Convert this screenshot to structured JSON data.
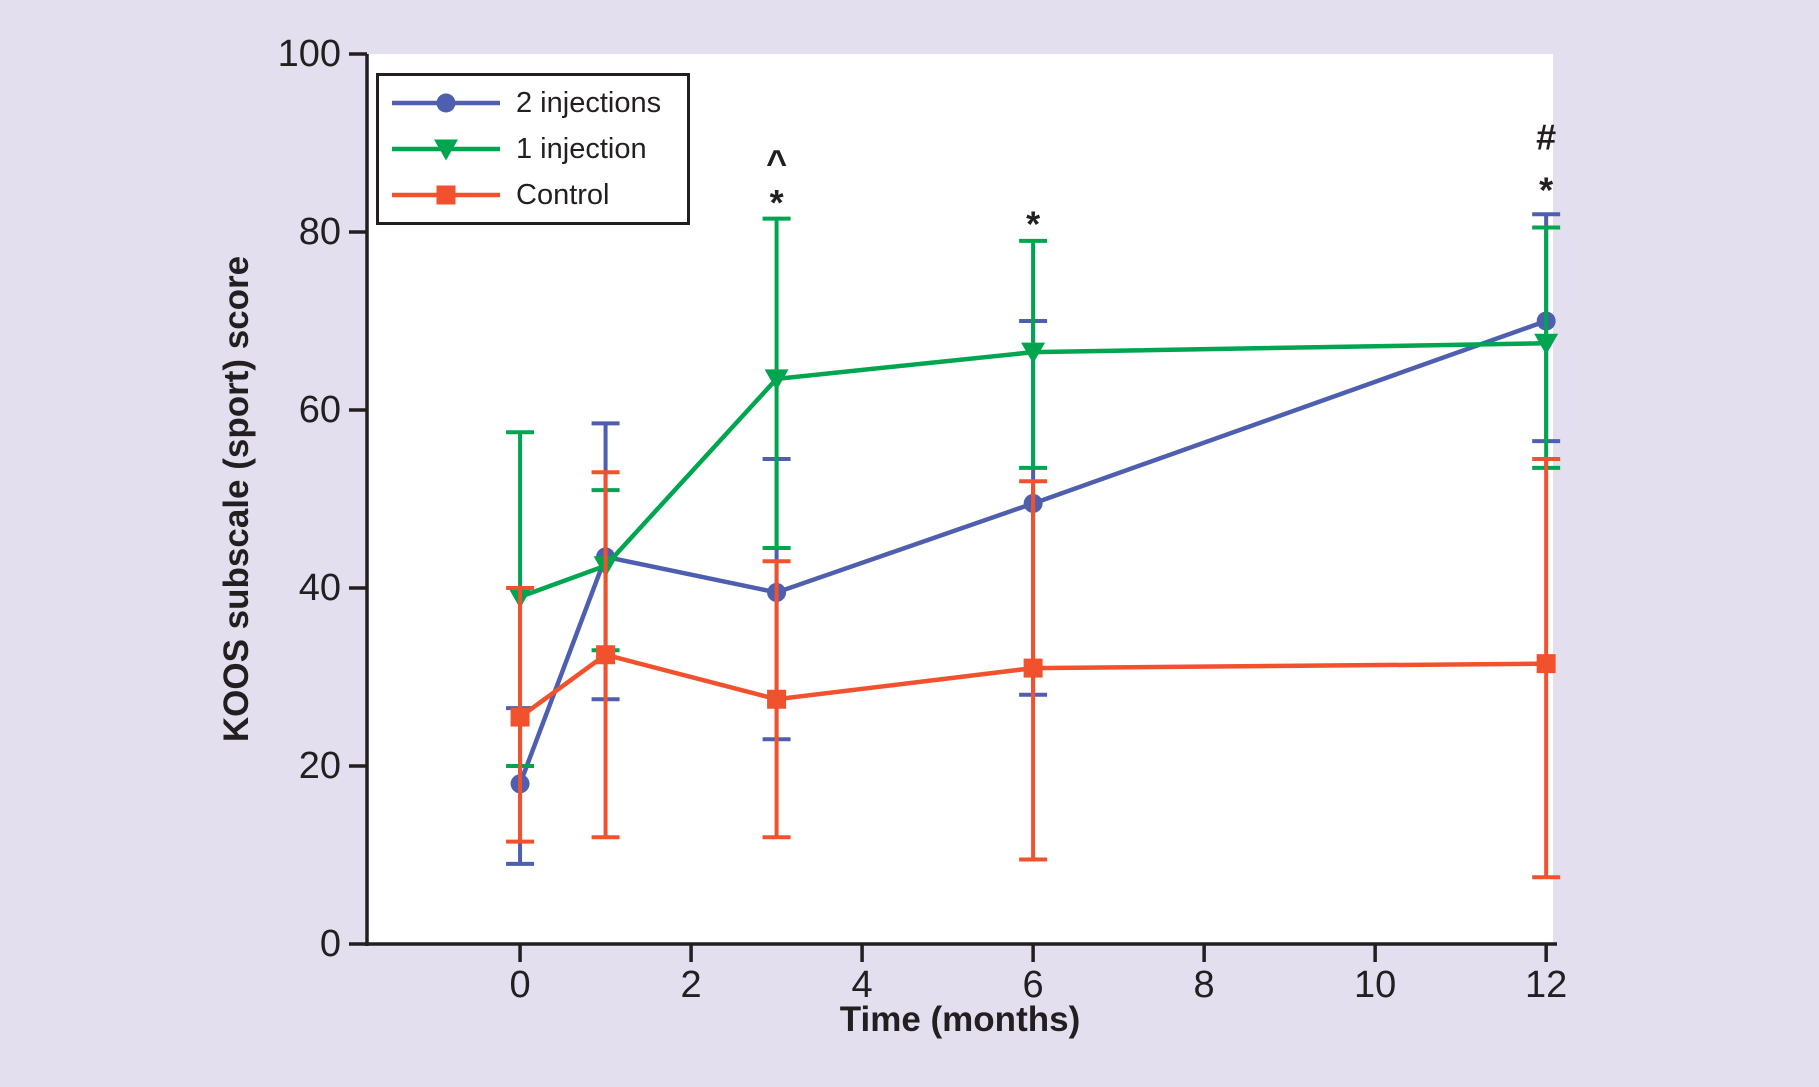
{
  "figure": {
    "background": "#e3dfee",
    "plot_background": "#ffffff",
    "axis_color": "#231f20"
  },
  "chart_data": {
    "type": "line",
    "title": "",
    "xlabel": "Time (months)",
    "ylabel": "KOOS subscale (sport) score",
    "x_ticks": [
      0,
      2,
      4,
      6,
      8,
      10,
      12
    ],
    "y_ticks": [
      0,
      20,
      40,
      60,
      80,
      100
    ],
    "xlim": [
      -1.79,
      12.08
    ],
    "ylim": [
      0,
      100
    ],
    "grid": false,
    "legend_position": "upper-left",
    "error_bars": true,
    "x": [
      0,
      1,
      3,
      6,
      12
    ],
    "series": [
      {
        "name": "2 injections",
        "marker": "circle",
        "color": "#4d5fae",
        "values": [
          18,
          43.5,
          39.5,
          49.5,
          70
        ],
        "error_low": [
          9,
          27.5,
          23,
          28,
          56.5
        ],
        "error_high": [
          26.5,
          58.5,
          54.5,
          70,
          82
        ]
      },
      {
        "name": "1 injection",
        "marker": "triangle-down",
        "color": "#00a550",
        "values": [
          39,
          42.5,
          63.5,
          66.5,
          67.5
        ],
        "error_low": [
          20,
          33,
          44.5,
          53.5,
          53.5
        ],
        "error_high": [
          57.5,
          51,
          81.5,
          79,
          80.5
        ]
      },
      {
        "name": "Control",
        "marker": "square",
        "color": "#f1522d",
        "values": [
          25.5,
          32.5,
          27.5,
          31,
          31.5
        ],
        "error_low": [
          11.5,
          12,
          12,
          9.5,
          7.5
        ],
        "error_high": [
          40,
          53,
          43,
          52,
          54.5
        ]
      }
    ],
    "annotations": [
      {
        "x": 3,
        "y": 87.8,
        "text": "^"
      },
      {
        "x": 3,
        "y": 83.3,
        "text": "*"
      },
      {
        "x": 6,
        "y": 80.9,
        "text": "*"
      },
      {
        "x": 12,
        "y": 90.7,
        "text": "#"
      },
      {
        "x": 12,
        "y": 84.7,
        "text": "*"
      }
    ]
  }
}
